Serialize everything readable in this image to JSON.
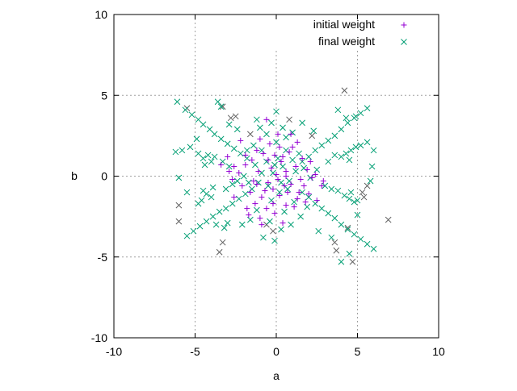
{
  "chart_data": {
    "type": "scatter",
    "xlabel": "a",
    "ylabel": "b",
    "xlim": [
      -10,
      10
    ],
    "ylim": [
      -10,
      10
    ],
    "xticks": [
      "-10",
      "-5",
      "0",
      "5",
      "10"
    ],
    "yticks": [
      "-10",
      "-5",
      "0",
      "5",
      "10"
    ],
    "grid": true,
    "legend_position": "top-right",
    "series": [
      {
        "name": "initial weight",
        "marker": "plus",
        "color": "#9400d3",
        "points": [
          [
            -0.6,
            3.5
          ],
          [
            0.9,
            2.6
          ],
          [
            -2.2,
            2.2
          ],
          [
            -1.9,
            1.3
          ],
          [
            -3.0,
            1.2
          ],
          [
            -3.4,
            0.7
          ],
          [
            -2.6,
            0.6
          ],
          [
            -2.3,
            0.2
          ],
          [
            -1.2,
            1.6
          ],
          [
            -0.5,
            1.0
          ],
          [
            0.4,
            1.2
          ],
          [
            1.0,
            1.8
          ],
          [
            1.6,
            1.1
          ],
          [
            1.9,
            0.4
          ],
          [
            2.2,
            -0.1
          ],
          [
            1.7,
            -0.6
          ],
          [
            2.0,
            -1.1
          ],
          [
            2.4,
            0.1
          ],
          [
            2.8,
            -0.6
          ],
          [
            1.3,
            -1.4
          ],
          [
            0.6,
            -1.8
          ],
          [
            -0.2,
            -1.7
          ],
          [
            -0.9,
            -1.3
          ],
          [
            -1.6,
            -1.0
          ],
          [
            -2.1,
            -0.6
          ],
          [
            -2.6,
            -1.3
          ],
          [
            -1.8,
            -2.0
          ],
          [
            -1.0,
            -2.6
          ],
          [
            -0.1,
            -2.3
          ],
          [
            0.4,
            -2.9
          ],
          [
            -0.9,
            -3.0
          ],
          [
            -1.7,
            -2.4
          ],
          [
            -0.5,
            -0.4
          ],
          [
            0.1,
            -0.2
          ],
          [
            0.6,
            0.3
          ],
          [
            -0.3,
            0.5
          ],
          [
            0.9,
            -0.5
          ],
          [
            1.2,
            0.6
          ],
          [
            -1.1,
            0.3
          ],
          [
            -1.4,
            -0.3
          ],
          [
            0.3,
            0.9
          ],
          [
            -0.7,
            -0.9
          ],
          [
            0.7,
            -1.0
          ],
          [
            1.5,
            -0.2
          ],
          [
            -1.9,
            0.7
          ],
          [
            0.2,
            1.8
          ],
          [
            -0.4,
            2.0
          ],
          [
            1.3,
            2.1
          ],
          [
            -1.0,
            2.3
          ],
          [
            0.0,
            0.1
          ],
          [
            0.5,
            -0.6
          ],
          [
            -0.2,
            -0.8
          ],
          [
            1.1,
            -1.9
          ],
          [
            -1.3,
            -1.7
          ],
          [
            2.5,
            -1.5
          ],
          [
            2.1,
            0.9
          ],
          [
            -2.7,
            -0.2
          ],
          [
            -0.8,
            1.4
          ],
          [
            0.8,
            1.5
          ],
          [
            -1.5,
            1.0
          ],
          [
            1.8,
            -1.6
          ],
          [
            -0.6,
            -2.0
          ],
          [
            0.2,
            -1.2
          ],
          [
            2.9,
            -0.3
          ],
          [
            -2.9,
            0.3
          ],
          [
            0.1,
            2.6
          ],
          [
            -0.1,
            1.3
          ],
          [
            1.4,
            -1.0
          ],
          [
            -1.2,
            -0.5
          ],
          [
            0.6,
            0.0
          ]
        ]
      },
      {
        "name": "final weight",
        "marker": "cross",
        "color": "#009e73",
        "points": [
          [
            -6.1,
            4.6
          ],
          [
            -5.6,
            4.1
          ],
          [
            -5.2,
            3.8
          ],
          [
            -4.8,
            3.5
          ],
          [
            -4.5,
            3.2
          ],
          [
            -4.1,
            2.9
          ],
          [
            -3.8,
            2.6
          ],
          [
            -3.4,
            2.3
          ],
          [
            -3.0,
            2.0
          ],
          [
            -2.6,
            1.7
          ],
          [
            -2.2,
            1.4
          ],
          [
            -1.8,
            1.1
          ],
          [
            -3.6,
            4.6
          ],
          [
            -3.4,
            4.3
          ],
          [
            -2.9,
            3.2
          ],
          [
            -2.4,
            2.9
          ],
          [
            6.0,
            -4.5
          ],
          [
            5.6,
            -4.2
          ],
          [
            5.2,
            -3.9
          ],
          [
            4.8,
            -3.6
          ],
          [
            4.4,
            -3.3
          ],
          [
            4.0,
            -3.0
          ],
          [
            3.6,
            -2.6
          ],
          [
            3.2,
            -2.3
          ],
          [
            2.8,
            -2.0
          ],
          [
            2.4,
            -1.7
          ],
          [
            2.0,
            -1.3
          ],
          [
            1.6,
            -1.0
          ],
          [
            4.0,
            -5.3
          ],
          [
            4.5,
            -4.8
          ],
          [
            5.6,
            4.2
          ],
          [
            5.2,
            3.9
          ],
          [
            4.8,
            3.6
          ],
          [
            4.4,
            3.3
          ],
          [
            4.0,
            2.9
          ],
          [
            3.6,
            2.5
          ],
          [
            3.2,
            2.2
          ],
          [
            2.8,
            1.9
          ],
          [
            2.4,
            1.6
          ],
          [
            2.0,
            1.2
          ],
          [
            1.6,
            0.9
          ],
          [
            4.9,
            3.7
          ],
          [
            4.3,
            3.6
          ],
          [
            -5.5,
            -3.7
          ],
          [
            -5.1,
            -3.4
          ],
          [
            -4.7,
            -3.1
          ],
          [
            -4.3,
            -2.8
          ],
          [
            -3.9,
            -2.5
          ],
          [
            -3.5,
            -2.2
          ],
          [
            -3.1,
            -2.0
          ],
          [
            -2.7,
            -1.7
          ],
          [
            -2.3,
            -1.4
          ],
          [
            -1.9,
            -1.1
          ],
          [
            -1.5,
            -0.8
          ],
          [
            -3.7,
            -3.0
          ],
          [
            -3.2,
            -3.2
          ],
          [
            -4.8,
            1.4
          ],
          [
            -4.5,
            1.1
          ],
          [
            -4.2,
            1.3
          ],
          [
            -4.0,
            0.9
          ],
          [
            -4.4,
            0.7
          ],
          [
            -3.8,
            1.2
          ],
          [
            -5.3,
            1.8
          ],
          [
            -5.8,
            1.6
          ],
          [
            -6.2,
            1.5
          ],
          [
            -4.6,
            -1.5
          ],
          [
            -4.3,
            -1.1
          ],
          [
            -4.0,
            -1.3
          ],
          [
            -4.5,
            -0.9
          ],
          [
            -3.9,
            -0.7
          ],
          [
            -4.8,
            -1.7
          ],
          [
            -5.5,
            -1.0
          ],
          [
            -6.0,
            -0.1
          ],
          [
            4.3,
            1.4
          ],
          [
            4.6,
            1.6
          ],
          [
            4.9,
            1.8
          ],
          [
            4.0,
            1.2
          ],
          [
            4.5,
            1.0
          ],
          [
            5.2,
            1.9
          ],
          [
            5.6,
            2.1
          ],
          [
            6.0,
            1.6
          ],
          [
            4.5,
            -1.4
          ],
          [
            4.8,
            -1.6
          ],
          [
            5.0,
            -1.5
          ],
          [
            4.2,
            -1.2
          ],
          [
            4.6,
            -1.0
          ],
          [
            3.8,
            -0.9
          ],
          [
            5.8,
            -0.3
          ],
          [
            5.9,
            0.6
          ],
          [
            3.6,
            1.3
          ],
          [
            3.2,
            0.9
          ],
          [
            3.4,
            -0.8
          ],
          [
            3.0,
            -0.6
          ],
          [
            -3.3,
            0.9
          ],
          [
            -2.9,
            0.6
          ],
          [
            -3.1,
            -0.8
          ],
          [
            -2.7,
            -0.5
          ],
          [
            0.0,
            4.0
          ],
          [
            -0.3,
            3.3
          ],
          [
            0.4,
            3.0
          ],
          [
            -1.0,
            3.0
          ],
          [
            1.0,
            2.7
          ],
          [
            -0.8,
            -3.8
          ],
          [
            0.3,
            -3.3
          ],
          [
            -0.4,
            -2.8
          ],
          [
            0.9,
            -3.0
          ],
          [
            -0.2,
            0.2
          ],
          [
            0.4,
            0.6
          ],
          [
            -0.6,
            0.9
          ],
          [
            0.8,
            -0.3
          ],
          [
            -1.1,
            -0.4
          ],
          [
            0.2,
            -1.0
          ],
          [
            1.2,
            0.3
          ],
          [
            -0.9,
            1.6
          ],
          [
            0.6,
            1.6
          ],
          [
            1.4,
            1.4
          ],
          [
            -1.4,
            1.9
          ],
          [
            0.0,
            2.1
          ],
          [
            -0.3,
            -1.5
          ],
          [
            1.1,
            -1.6
          ],
          [
            -1.2,
            -2.1
          ],
          [
            0.5,
            -2.2
          ],
          [
            -2.0,
            0.0
          ],
          [
            2.1,
            -0.1
          ],
          [
            1.7,
            0.5
          ],
          [
            -1.7,
            -0.4
          ],
          [
            0.1,
            1.1
          ],
          [
            -0.5,
            -0.6
          ],
          [
            0.7,
            -0.8
          ],
          [
            -0.9,
            0.2
          ],
          [
            1.0,
            1.0
          ],
          [
            -1.3,
            0.7
          ],
          [
            0.3,
            -0.4
          ],
          [
            -0.1,
            0.7
          ],
          [
            2.5,
            0.4
          ],
          [
            -2.4,
            -0.3
          ],
          [
            1.9,
            -1.9
          ],
          [
            -1.8,
            1.6
          ],
          [
            0.6,
            2.4
          ],
          [
            -0.6,
            2.6
          ],
          [
            1.5,
            -2.5
          ],
          [
            -1.6,
            -2.7
          ],
          [
            2.3,
            2.8
          ],
          [
            -2.1,
            -3.0
          ],
          [
            3.8,
            4.1
          ],
          [
            2.6,
            -3.4
          ],
          [
            -3.0,
            -2.9
          ],
          [
            -1.2,
            3.5
          ],
          [
            1.6,
            3.3
          ],
          [
            -4.9,
            2.3
          ],
          [
            5.0,
            -2.4
          ],
          [
            3.4,
            -3.8
          ],
          [
            -0.1,
            -4.0
          ]
        ]
      },
      {
        "marker": "cross",
        "color": "#606060",
        "points": [
          [
            4.2,
            5.3
          ],
          [
            -5.5,
            4.2
          ],
          [
            -3.3,
            4.3
          ],
          [
            -2.5,
            3.7
          ],
          [
            6.9,
            -2.7
          ],
          [
            -6.0,
            -1.8
          ],
          [
            -6.0,
            -2.8
          ],
          [
            -3.5,
            -4.7
          ],
          [
            -3.3,
            -4.1
          ],
          [
            4.7,
            -5.3
          ],
          [
            3.6,
            -4.1
          ],
          [
            3.7,
            -4.6
          ],
          [
            5.4,
            -1.3
          ],
          [
            5.6,
            -0.6
          ],
          [
            5.3,
            -1.0
          ],
          [
            -0.2,
            -3.4
          ],
          [
            -0.6,
            -3.0
          ],
          [
            2.2,
            2.5
          ],
          [
            -2.8,
            3.6
          ],
          [
            0.8,
            3.5
          ],
          [
            -1.6,
            2.6
          ],
          [
            4.4,
            -3.2
          ]
        ]
      }
    ]
  }
}
